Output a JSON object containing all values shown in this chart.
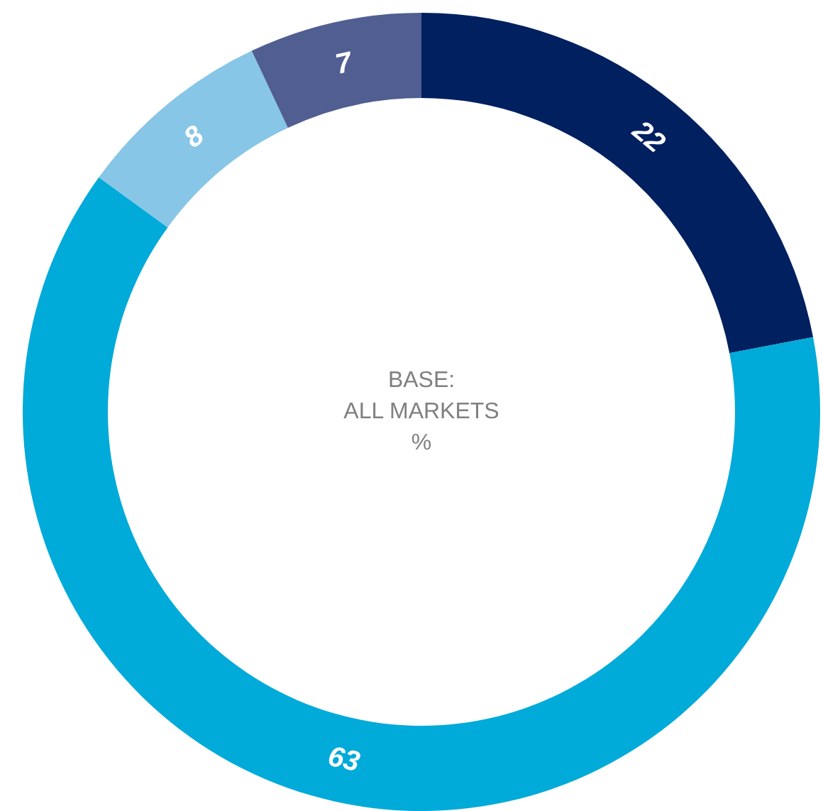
{
  "chart_data": {
    "type": "donut",
    "categories": [
      null,
      null,
      null,
      null
    ],
    "values": [
      22,
      63,
      8,
      7
    ],
    "colors": [
      "#002060",
      "#00aad9",
      "#87c6e6",
      "#515e91"
    ],
    "data_labels": true,
    "annotations": [
      "BASE:",
      "ALL MARKETS",
      "%"
    ]
  }
}
